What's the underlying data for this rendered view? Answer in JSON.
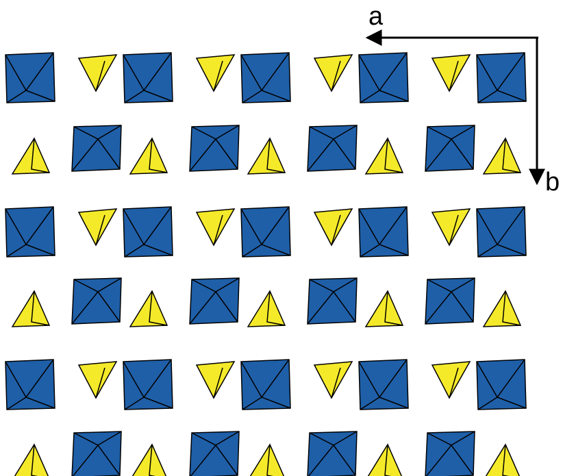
{
  "axes": {
    "a": "a",
    "b": "b"
  }
}
